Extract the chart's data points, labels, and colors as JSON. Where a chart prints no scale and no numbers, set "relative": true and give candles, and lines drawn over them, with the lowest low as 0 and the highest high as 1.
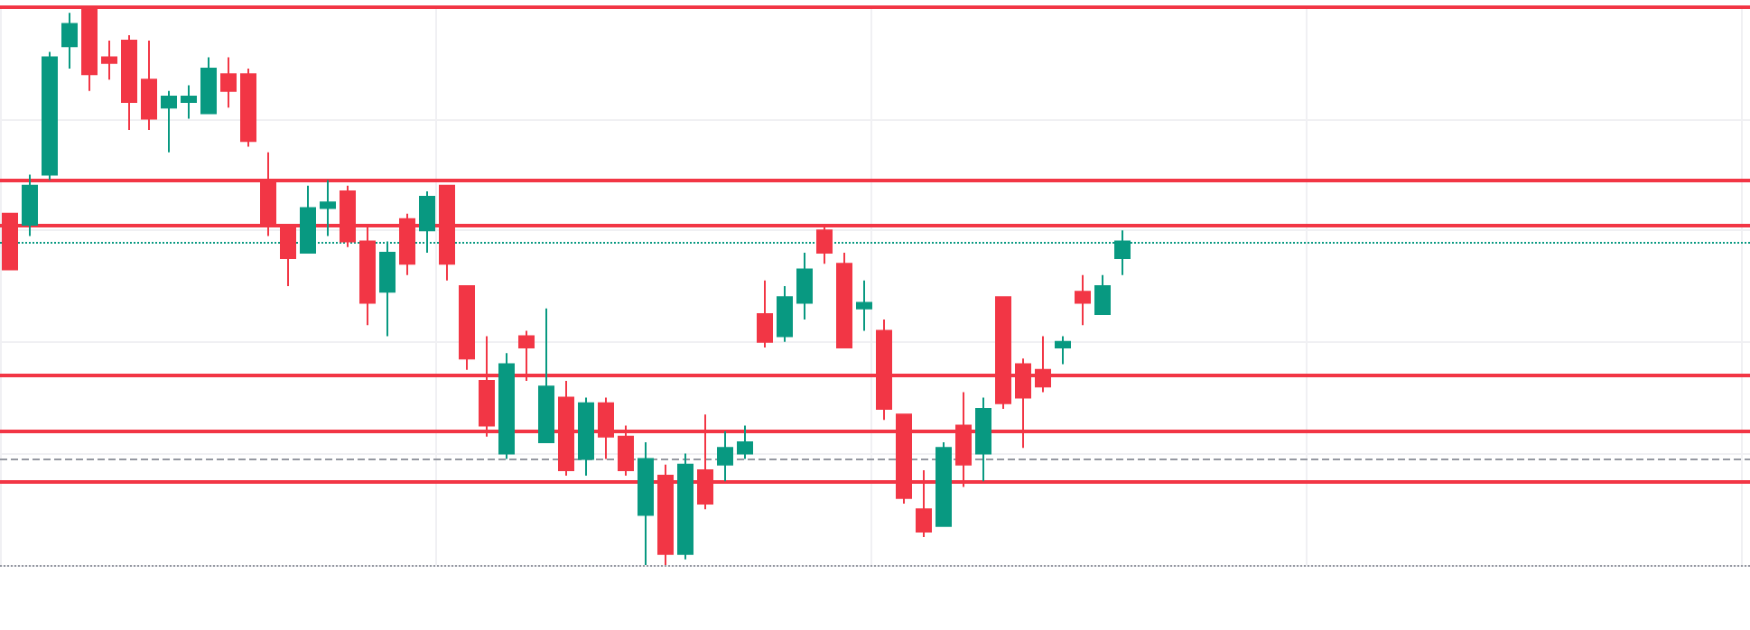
{
  "chart_data": {
    "type": "candlestick",
    "relative": true,
    "grid": true,
    "colors": [
      "#f23645",
      "#089981",
      "#089981",
      "#089981",
      "#f23645",
      "#f23645",
      "#f23645",
      "#f23645",
      "#089981",
      "#089981",
      "#089981",
      "#f23645",
      "#f23645",
      "#f23645",
      "#f23645",
      "#089981",
      "#089981",
      "#f23645",
      "#f23645",
      "#089981",
      "#f23645",
      "#089981",
      "#f23645",
      "#f23645",
      "#f23645",
      "#089981",
      "#f23645",
      "#089981",
      "#f23645",
      "#089981",
      "#f23645",
      "#f23645",
      "#089981",
      "#f23645",
      "#089981",
      "#f23645",
      "#089981",
      "#089981",
      "#f23645",
      "#089981",
      "#089981",
      "#f23645",
      "#f23645",
      "#089981",
      "#f23645",
      "#f23645",
      "#f23645",
      "#089981",
      "#f23645",
      "#089981",
      "#f23645",
      "#f23645",
      "#f23645",
      "#089981",
      "#f23645",
      "#089981",
      "#089981"
    ],
    "categories": [
      null,
      null,
      null,
      null,
      null,
      null,
      null,
      null,
      null,
      null,
      null,
      null,
      null,
      null,
      null,
      null,
      null,
      null,
      null,
      null,
      null,
      null,
      null,
      null,
      null,
      null,
      null,
      null,
      null,
      null,
      null,
      null,
      null,
      null,
      null,
      null,
      null,
      null,
      null,
      null,
      null,
      null,
      null,
      null,
      null,
      null,
      null,
      null,
      null,
      null,
      null,
      null,
      null,
      null,
      null,
      null,
      null
    ],
    "ohlc": [
      [
        0.63,
        0.63,
        0.53,
        0.53
      ],
      [
        0.61,
        0.7,
        0.59,
        0.68
      ],
      [
        0.7,
        0.92,
        0.69,
        0.91
      ],
      [
        0.93,
        0.99,
        0.89,
        0.97
      ],
      [
        1,
        1,
        0.85,
        0.88
      ],
      [
        0.91,
        0.94,
        0.87,
        0.9
      ],
      [
        0.94,
        0.95,
        0.78,
        0.83
      ],
      [
        0.87,
        0.94,
        0.78,
        0.8
      ],
      [
        0.82,
        0.85,
        0.74,
        0.84
      ],
      [
        0.83,
        0.86,
        0.8,
        0.84
      ],
      [
        0.81,
        0.91,
        0.81,
        0.89
      ],
      [
        0.88,
        0.91,
        0.82,
        0.85
      ],
      [
        0.88,
        0.89,
        0.75,
        0.76
      ],
      [
        0.69,
        0.74,
        0.59,
        0.61
      ],
      [
        0.61,
        0.61,
        0.5,
        0.55
      ],
      [
        0.56,
        0.68,
        0.56,
        0.64
      ],
      [
        0.64,
        0.69,
        0.59,
        0.65
      ],
      [
        0.67,
        0.68,
        0.57,
        0.58
      ],
      [
        0.58,
        0.61,
        0.43,
        0.47
      ],
      [
        0.49,
        0.58,
        0.41,
        0.56
      ],
      [
        0.62,
        0.63,
        0.52,
        0.54
      ],
      [
        0.6,
        0.67,
        0.56,
        0.66
      ],
      [
        0.68,
        0.68,
        0.51,
        0.54
      ],
      [
        0.5,
        0.5,
        0.35,
        0.37
      ],
      [
        0.33,
        0.41,
        0.23,
        0.25
      ],
      [
        0.2,
        0.38,
        0.19,
        0.36
      ],
      [
        0.41,
        0.42,
        0.33,
        0.39
      ],
      [
        0.22,
        0.46,
        0.22,
        0.32
      ],
      [
        0.3,
        0.33,
        0.16,
        0.17
      ],
      [
        0.19,
        0.3,
        0.16,
        0.29
      ],
      [
        0.29,
        0.3,
        0.19,
        0.23
      ],
      [
        0.23,
        0.25,
        0.16,
        0.17
      ],
      [
        0.09,
        0.22,
        0,
        0.19
      ],
      [
        0.16,
        0.18,
        0,
        0.02
      ],
      [
        0.02,
        0.2,
        0.01,
        0.18
      ],
      [
        0.17,
        0.27,
        0.1,
        0.11
      ],
      [
        0.18,
        0.24,
        0.15,
        0.21
      ],
      [
        0.2,
        0.25,
        0.19,
        0.22
      ],
      [
        0.45,
        0.51,
        0.39,
        0.4
      ],
      [
        0.41,
        0.5,
        0.4,
        0.48
      ],
      [
        0.47,
        0.56,
        0.44,
        0.53
      ],
      [
        0.6,
        0.61,
        0.54,
        0.56
      ],
      [
        0.54,
        0.56,
        0.39,
        0.39
      ],
      [
        0.46,
        0.51,
        0.42,
        0.47
      ],
      [
        0.42,
        0.44,
        0.26,
        0.28
      ],
      [
        0.27,
        0.27,
        0.11,
        0.12
      ],
      [
        0.1,
        0.17,
        0.05,
        0.06
      ],
      [
        0.07,
        0.22,
        0.07,
        0.21
      ],
      [
        0.25,
        0.31,
        0.14,
        0.18
      ],
      [
        0.2,
        0.3,
        0.15,
        0.28
      ],
      [
        0.48,
        0.48,
        0.28,
        0.29
      ],
      [
        0.36,
        0.37,
        0.21,
        0.3
      ],
      [
        0.35,
        0.41,
        0.31,
        0.32
      ],
      [
        0.39,
        0.41,
        0.36,
        0.4
      ],
      [
        0.49,
        0.52,
        0.43,
        0.47
      ],
      [
        0.45,
        0.52,
        0.45,
        0.5
      ],
      [
        0.55,
        0.6,
        0.52,
        0.58
      ]
    ],
    "ref_lines": [
      {
        "axis": "y",
        "value": 1,
        "color": "#f23645",
        "line_style": "solid"
      },
      {
        "axis": "y",
        "value": 0.69,
        "color": "#f23645",
        "line_style": "solid"
      },
      {
        "axis": "y",
        "value": 0.61,
        "color": "#f23645",
        "line_style": "solid"
      },
      {
        "axis": "y",
        "value": 0.34,
        "color": "#f23645",
        "line_style": "solid"
      },
      {
        "axis": "y",
        "value": 0.24,
        "color": "#f23645",
        "line_style": "solid"
      },
      {
        "axis": "y",
        "value": 0.15,
        "color": "#f23645",
        "line_style": "solid"
      },
      {
        "axis": "y",
        "value": 0.19,
        "color": "#9598a1",
        "line_style": "dashed"
      },
      {
        "axis": "y",
        "value": 0.58,
        "color": "#089981",
        "line_style": "dotted"
      },
      {
        "axis": "y",
        "value": 0,
        "color": "#9598a1",
        "line_style": "dotted"
      }
    ]
  }
}
